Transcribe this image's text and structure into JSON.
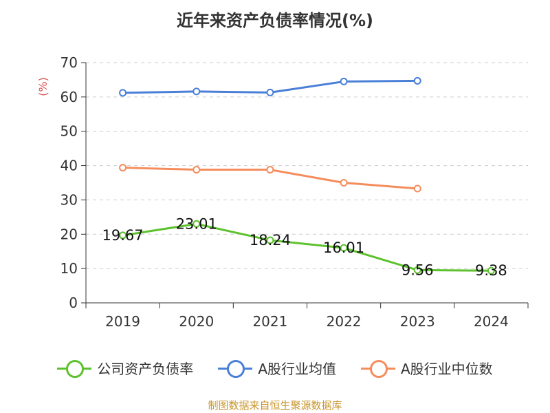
{
  "title": "近年来资产负债率情况(%)",
  "source": "制图数据来自恒生聚源数据库",
  "chart_data": {
    "type": "line",
    "title": "近年来资产负债率情况(%)",
    "ylabel": "(%)",
    "xlabel": "",
    "categories": [
      "2019",
      "2020",
      "2021",
      "2022",
      "2023",
      "2024"
    ],
    "ylim": [
      0,
      70
    ],
    "yticks": [
      0,
      10,
      20,
      30,
      40,
      50,
      60,
      70
    ],
    "grid": true,
    "legend_position": "bottom",
    "series": [
      {
        "name": "公司资产负债率",
        "color": "#5cc12c",
        "values": [
          19.67,
          23.01,
          18.24,
          16.01,
          9.56,
          9.38
        ],
        "labels": [
          "19.67",
          "23.01",
          "18.24",
          "16.01",
          "9.56",
          "9.38"
        ]
      },
      {
        "name": "A股行业均值",
        "color": "#4a7fd8",
        "values": [
          61.2,
          61.6,
          61.3,
          64.5,
          64.7,
          null
        ]
      },
      {
        "name": "A股行业中位数",
        "color": "#f58c5c",
        "values": [
          39.4,
          38.8,
          38.8,
          35.0,
          33.3,
          null
        ]
      }
    ]
  }
}
